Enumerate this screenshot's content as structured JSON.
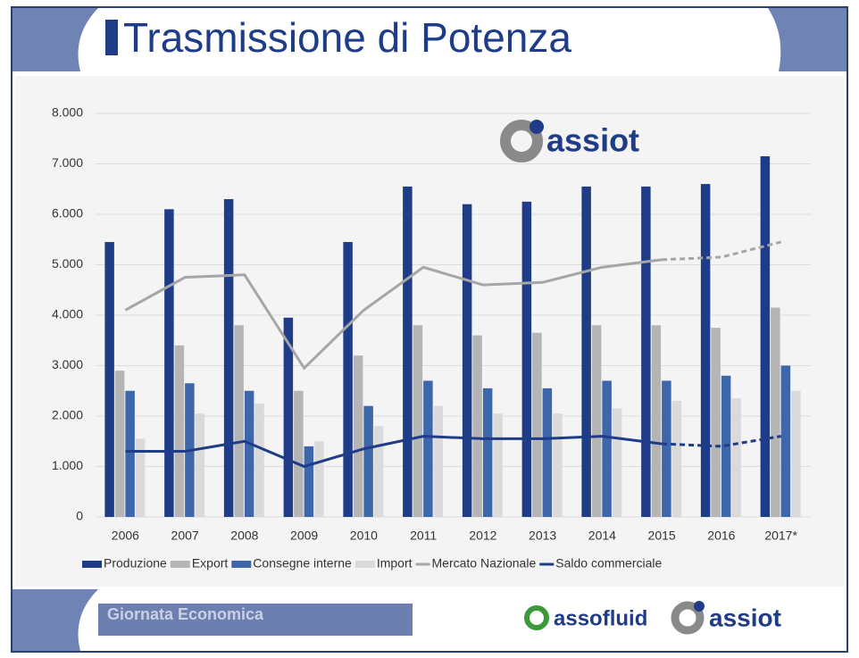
{
  "chart_data": {
    "type": "bar",
    "title": "Trasmissione di Potenza",
    "categories": [
      "2006",
      "2007",
      "2008",
      "2009",
      "2010",
      "2011",
      "2012",
      "2013",
      "2014",
      "2015",
      "2016",
      "2017*"
    ],
    "series": [
      {
        "name": "Produzione",
        "color": "#1f3c88",
        "values": [
          5450,
          6100,
          6300,
          3950,
          5450,
          6550,
          6200,
          6250,
          6550,
          6550,
          6600,
          7150
        ]
      },
      {
        "name": "Export",
        "color": "#b5b5b5",
        "values": [
          2900,
          3400,
          3800,
          2500,
          3200,
          3800,
          3600,
          3650,
          3800,
          3800,
          3750,
          4150
        ]
      },
      {
        "name": "Consegne interne",
        "color": "#3d66ab",
        "values": [
          2500,
          2650,
          2500,
          1400,
          2200,
          2700,
          2550,
          2550,
          2700,
          2700,
          2800,
          3000
        ]
      },
      {
        "name": "Import",
        "color": "#dadada",
        "values": [
          1550,
          2050,
          2250,
          1500,
          1800,
          2200,
          2050,
          2050,
          2150,
          2300,
          2350,
          2500
        ]
      },
      {
        "name": "Mercato Nazionale",
        "color": "#a6a6a6",
        "type": "line",
        "values": [
          4100,
          4750,
          4800,
          2950,
          4100,
          4950,
          4600,
          4650,
          4950,
          5100,
          5150,
          5450
        ]
      },
      {
        "name": "Saldo commerciale",
        "color": "#1f3c88",
        "type": "line",
        "values": [
          1300,
          1300,
          1500,
          1000,
          1350,
          1600,
          1550,
          1550,
          1600,
          1450,
          1400,
          1600
        ]
      }
    ],
    "ylim": [
      0,
      8000
    ],
    "yticks": [
      0,
      {
        "value": 1000,
        "label": "1.000"
      },
      {
        "value": 2000,
        "label": "2.000"
      },
      {
        "value": 3000,
        "label": "3.000"
      },
      {
        "value": 4000,
        "label": "4.000"
      },
      {
        "value": 5000,
        "label": "5.000"
      },
      {
        "value": 6000,
        "label": "6.000"
      },
      {
        "value": 7000,
        "label": "7.000"
      },
      {
        "value": 8000,
        "label": "8.000"
      }
    ],
    "grid": true,
    "legend": "bottom"
  },
  "logos": [
    "assiot",
    "assofluid",
    "assiot"
  ],
  "footer": "Giornata Economica"
}
